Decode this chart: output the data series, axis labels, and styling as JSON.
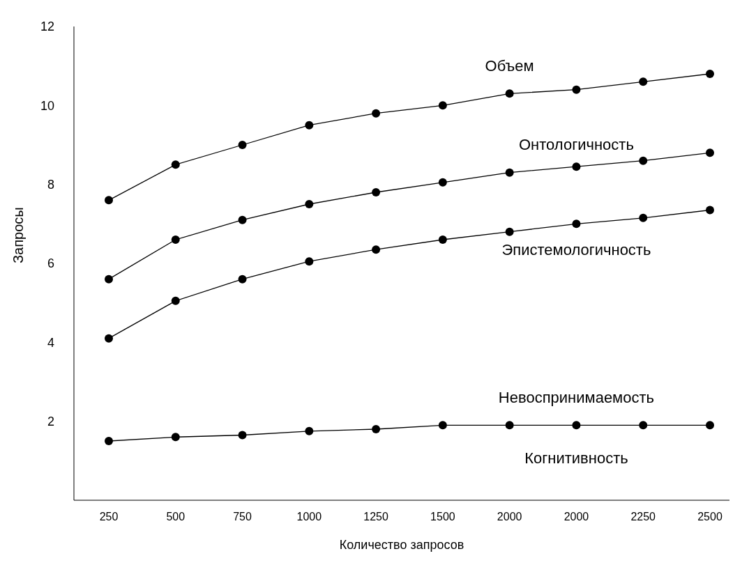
{
  "chart_data": {
    "type": "line",
    "xlabel": "Количество запросов",
    "ylabel": "Запросы",
    "categories": [
      "250",
      "500",
      "750",
      "1000",
      "1250",
      "1500",
      "2000",
      "2000",
      "2250",
      "2500"
    ],
    "ylim": [
      0,
      12
    ],
    "yticks": [
      2,
      4,
      6,
      8,
      10,
      12
    ],
    "grid": false,
    "legend": false,
    "marker": "circle",
    "line_style": "solid",
    "series": [
      {
        "name": "Объем",
        "color": "#000000",
        "values": [
          7.6,
          8.5,
          9.0,
          9.5,
          9.8,
          10.0,
          10.3,
          10.4,
          10.6,
          10.8
        ]
      },
      {
        "name": "Онтологичность",
        "color": "#000000",
        "values": [
          5.6,
          6.6,
          7.1,
          7.5,
          7.8,
          8.05,
          8.3,
          8.45,
          8.6,
          8.8
        ]
      },
      {
        "name": "Эпистемологичность",
        "color": "#000000",
        "values": [
          4.1,
          5.05,
          5.6,
          6.05,
          6.35,
          6.6,
          6.8,
          7.0,
          7.15,
          7.35
        ]
      },
      {
        "name": "Невоспринимаемость",
        "color": "#000000",
        "values": [
          1.5,
          1.6,
          1.65,
          1.75,
          1.8,
          1.9,
          1.9,
          1.9,
          1.9,
          1.9
        ]
      }
    ],
    "annotations": [
      "Когнитивность"
    ]
  }
}
